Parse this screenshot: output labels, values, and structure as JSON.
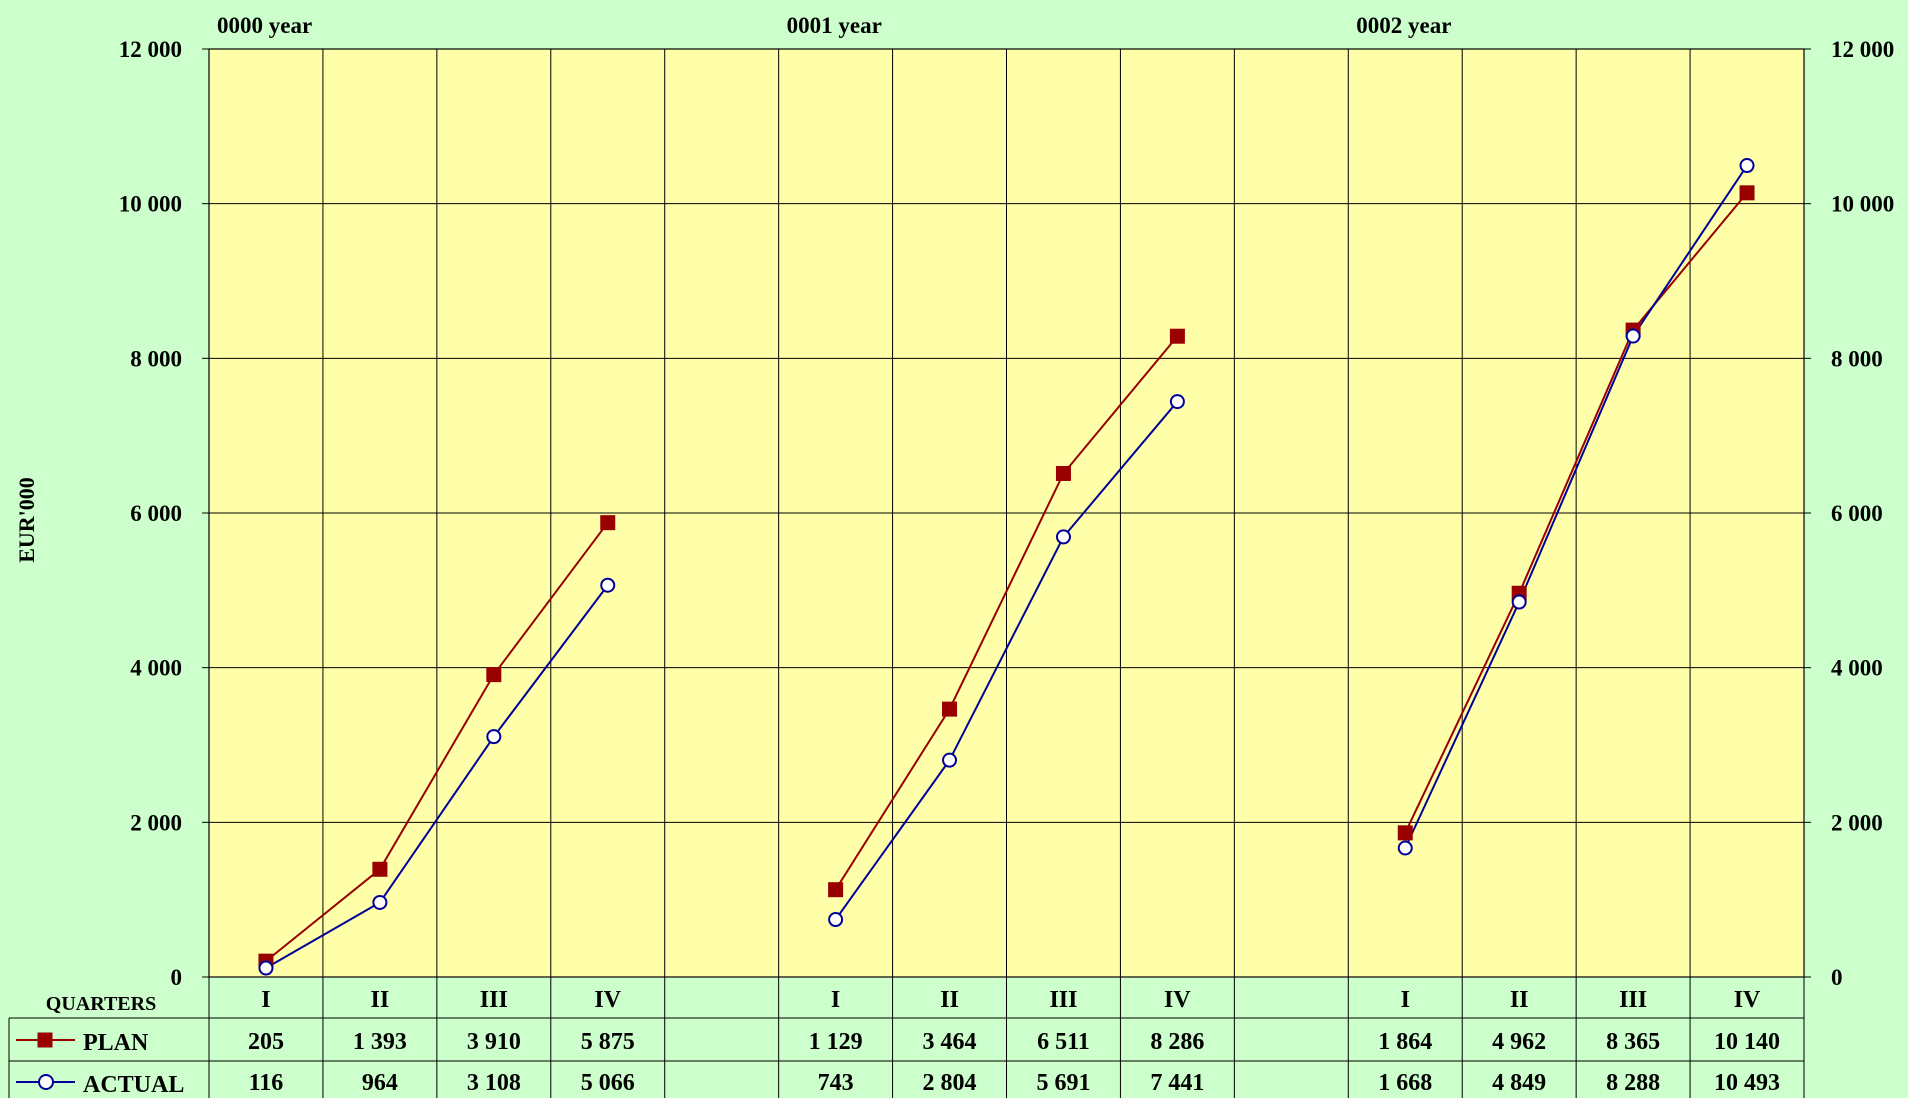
{
  "chart_data": {
    "type": "line",
    "years": [
      "0000 year",
      "0001 year",
      "0002 year"
    ],
    "ylabel": "EUR'000",
    "ylim": [
      0,
      12000
    ],
    "yticks": [
      0,
      2000,
      4000,
      6000,
      8000,
      10000,
      12000
    ],
    "ytick_labels": [
      "0",
      "2 000",
      "4 000",
      "6 000",
      "8 000",
      "10 000",
      "12 000"
    ],
    "categories_header": "QUARTERS",
    "categories": [
      "I",
      "II",
      "III",
      "IV",
      "",
      "I",
      "II",
      "III",
      "IV",
      "",
      "I",
      "II",
      "III",
      "IV"
    ],
    "series": [
      {
        "name": "PLAN",
        "color": "#990000",
        "marker": "square",
        "values": [
          205,
          1393,
          3910,
          5875,
          null,
          1129,
          3464,
          6511,
          8286,
          null,
          1864,
          4962,
          8365,
          10140
        ],
        "labels": [
          "205",
          "1 393",
          "3 910",
          "5 875",
          "",
          "1 129",
          "3 464",
          "6 511",
          "8 286",
          "",
          "1 864",
          "4 962",
          "8 365",
          "10 140"
        ]
      },
      {
        "name": "ACTUAL",
        "color": "#000099",
        "marker": "circle",
        "values": [
          116,
          964,
          3108,
          5066,
          null,
          743,
          2804,
          5691,
          7441,
          null,
          1668,
          4849,
          8288,
          10493
        ],
        "labels": [
          "116",
          "964",
          "3 108",
          "5 066",
          "",
          "743",
          "2 804",
          "5 691",
          "7 441",
          "",
          "1 668",
          "4 849",
          "8 288",
          "10 493"
        ]
      }
    ],
    "grid": true,
    "legend": "data-table-left",
    "colors": {
      "page_bg": "#ccffcc",
      "plot_bg": "#ffffaa",
      "grid": "#000000"
    }
  }
}
